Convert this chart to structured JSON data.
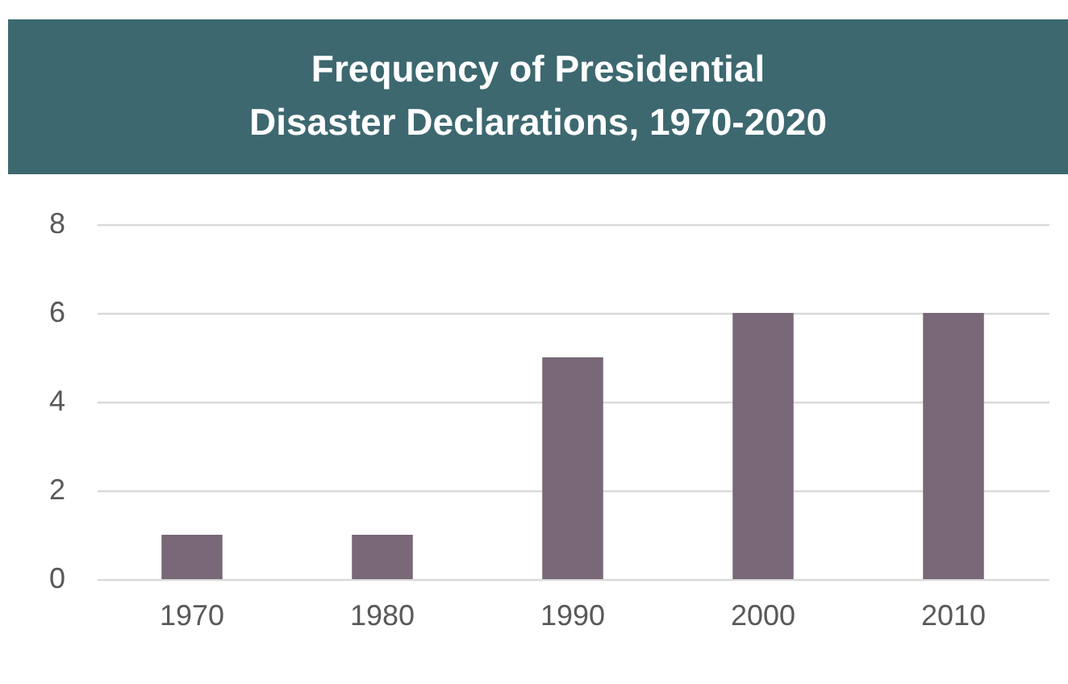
{
  "chart_data": {
    "type": "bar",
    "title": "Frequency of Presidential\nDisaster Declarations, 1970-2020",
    "categories": [
      "1970",
      "1980",
      "1990",
      "2000",
      "2010"
    ],
    "values": [
      1,
      1,
      5,
      6,
      6
    ],
    "color": "#796877",
    "ylim": [
      0,
      8
    ],
    "yticks": [
      0,
      2,
      4,
      6,
      8
    ],
    "grid": "y"
  }
}
